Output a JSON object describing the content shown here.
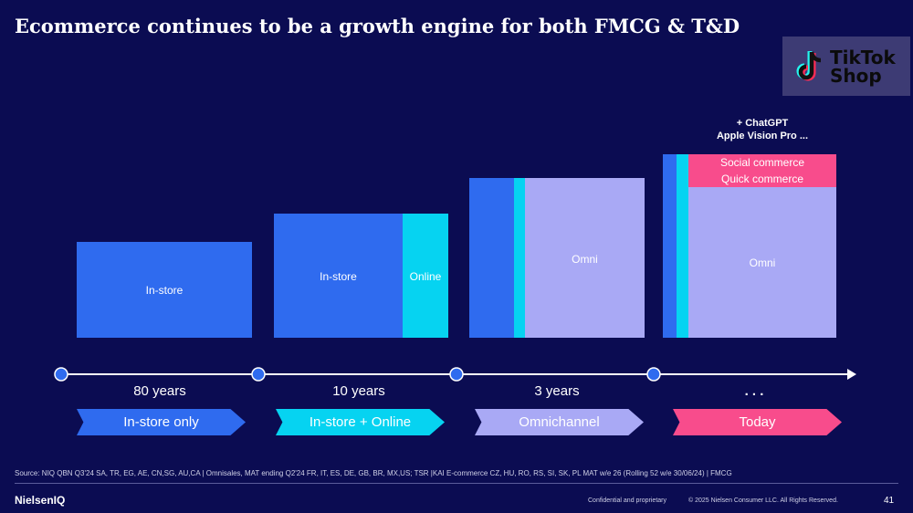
{
  "title": "Ecommerce continues to be a growth engine for both FMCG & T&D",
  "logo": {
    "text_line1": "TikTok",
    "text_line2": "Shop"
  },
  "blocks": {
    "b1": {
      "instore": "In-store"
    },
    "b2": {
      "instore": "In-store",
      "online": "Online"
    },
    "b3": {
      "omni": "Omni"
    },
    "b4": {
      "omni": "Omni",
      "social": "Social commerce",
      "quick": "Quick commerce"
    }
  },
  "note": {
    "line1": "+ ChatGPT",
    "line2": "Apple Vision Pro ..."
  },
  "periods": [
    "80 years",
    "10 years",
    "3 years",
    ". . ."
  ],
  "stages": [
    "In-store only",
    "In-store + Online",
    "Omnichannel",
    "Today"
  ],
  "colors": {
    "background": "#0b0c52",
    "instore": "#2f6bef",
    "online": "#06d3f1",
    "omni": "#a9a9f5",
    "social": "#f84c8c"
  },
  "source": "Source: NIQ QBN Q3'24 SA, TR, EG, AE, CN,SG, AU,CA | Omnisales, MAT ending Q2'24 FR, IT, ES, DE, GB, BR, MX,US; TSR |KAI E-commerce CZ, HU, RO, RS, SI, SK, PL MAT w/e 26 (Rolling 52 w/e 30/06/24) | FMCG",
  "footer": {
    "brand": "NielsenIQ",
    "confidential": "Confidential and proprietary",
    "copyright": "© 2025 Nielsen Consumer LLC. All Rights Reserved.",
    "page": "41"
  }
}
